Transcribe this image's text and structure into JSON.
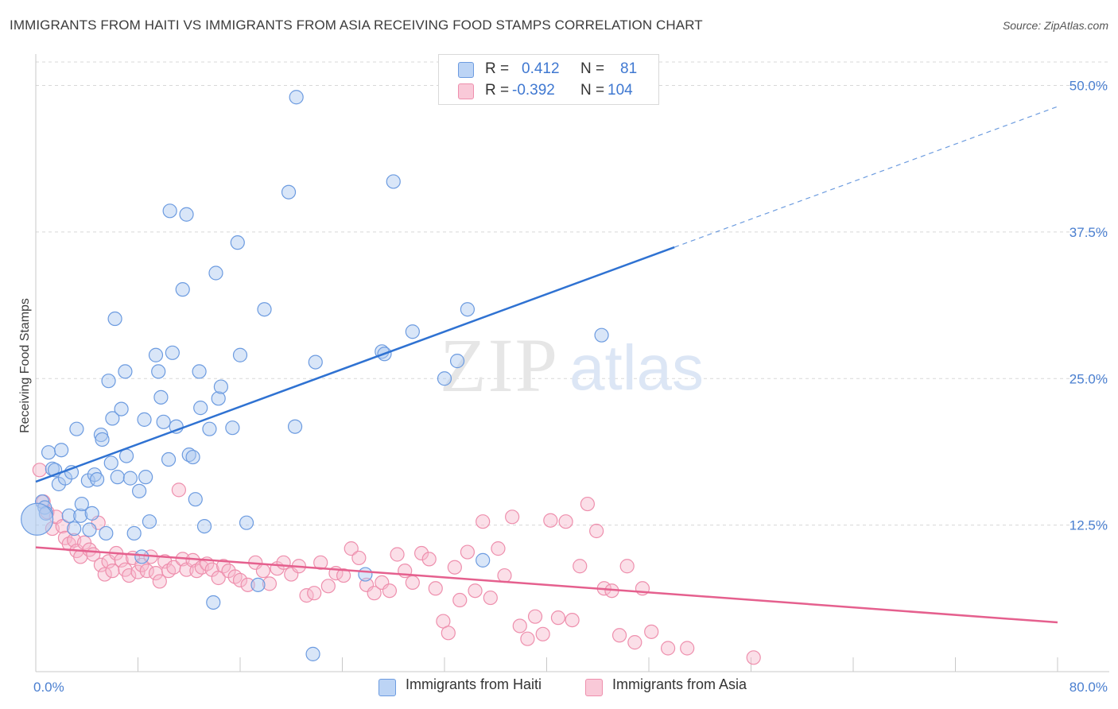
{
  "title": "IMMIGRANTS FROM HAITI VS IMMIGRANTS FROM ASIA RECEIVING FOOD STAMPS CORRELATION CHART",
  "source": "Source: ZipAtlas.com",
  "watermark_zip": "ZIP",
  "watermark_atlas": "atlas",
  "legend": {
    "haiti": {
      "r_label": "R =",
      "r_value": "0.412",
      "n_label": "N =",
      "n_value": "81"
    },
    "asia": {
      "r_label": "R =",
      "r_value": "-0.392",
      "n_label": "N =",
      "n_value": "104"
    }
  },
  "colors": {
    "haiti_fill": "#aac8f0",
    "haiti_stroke": "#6c9be0",
    "haiti_line": "#2f72d2",
    "asia_fill": "#f6b8cc",
    "asia_stroke": "#ee8fad",
    "asia_line": "#e5608e",
    "grid": "#d8d8d8",
    "axis_text": "#4a7fd0"
  },
  "chart_data": {
    "type": "scatter",
    "title": "IMMIGRANTS FROM HAITI VS IMMIGRANTS FROM ASIA RECEIVING FOOD STAMPS CORRELATION CHART",
    "xlabel": "",
    "ylabel": "Receiving Food Stamps",
    "xlim": [
      0,
      80
    ],
    "ylim": [
      0,
      52
    ],
    "x_tick_labels": [
      "0.0%",
      "80.0%"
    ],
    "y_ticks": [
      12.5,
      25.0,
      37.5,
      50.0
    ],
    "y_tick_labels": [
      "12.5%",
      "25.0%",
      "37.5%",
      "50.0%"
    ],
    "grid": true,
    "series": [
      {
        "name": "Immigrants from Haiti",
        "r": 0.412,
        "n": 81,
        "trend": {
          "x0": 0,
          "y0": 16.2,
          "x1": 50,
          "y1": 36.2,
          "dashed_to_x": 80,
          "dashed_to_y": 48.2
        },
        "points": [
          [
            0.5,
            14.5
          ],
          [
            0.7,
            14.0
          ],
          [
            0.8,
            13.5
          ],
          [
            1.0,
            18.7
          ],
          [
            1.3,
            17.3
          ],
          [
            1.5,
            17.2
          ],
          [
            1.8,
            16.0
          ],
          [
            2.0,
            18.9
          ],
          [
            2.3,
            16.5
          ],
          [
            2.6,
            13.3
          ],
          [
            2.8,
            17.0
          ],
          [
            3.0,
            12.2
          ],
          [
            3.2,
            20.7
          ],
          [
            3.5,
            13.3
          ],
          [
            3.6,
            14.3
          ],
          [
            4.1,
            16.3
          ],
          [
            4.2,
            12.1
          ],
          [
            4.4,
            13.5
          ],
          [
            4.6,
            16.8
          ],
          [
            4.8,
            16.4
          ],
          [
            5.1,
            20.2
          ],
          [
            5.2,
            19.8
          ],
          [
            5.5,
            11.8
          ],
          [
            5.7,
            24.8
          ],
          [
            5.9,
            17.8
          ],
          [
            6.0,
            21.6
          ],
          [
            6.2,
            30.1
          ],
          [
            6.4,
            16.6
          ],
          [
            6.7,
            22.4
          ],
          [
            7.0,
            25.6
          ],
          [
            7.1,
            18.4
          ],
          [
            7.4,
            16.5
          ],
          [
            7.7,
            11.8
          ],
          [
            8.1,
            15.4
          ],
          [
            8.3,
            9.8
          ],
          [
            8.5,
            21.5
          ],
          [
            8.6,
            16.6
          ],
          [
            8.9,
            12.8
          ],
          [
            9.4,
            27.0
          ],
          [
            9.6,
            25.6
          ],
          [
            9.8,
            23.4
          ],
          [
            10.0,
            21.3
          ],
          [
            10.4,
            18.1
          ],
          [
            10.5,
            39.3
          ],
          [
            10.7,
            27.2
          ],
          [
            11.0,
            20.9
          ],
          [
            11.5,
            32.6
          ],
          [
            11.8,
            39.0
          ],
          [
            12.0,
            18.5
          ],
          [
            12.3,
            18.3
          ],
          [
            12.5,
            14.7
          ],
          [
            12.8,
            25.6
          ],
          [
            12.9,
            22.5
          ],
          [
            13.2,
            12.4
          ],
          [
            13.6,
            20.7
          ],
          [
            13.9,
            5.9
          ],
          [
            14.1,
            34.0
          ],
          [
            14.3,
            23.3
          ],
          [
            14.5,
            24.3
          ],
          [
            15.4,
            20.8
          ],
          [
            15.8,
            36.6
          ],
          [
            16.0,
            27.0
          ],
          [
            16.5,
            12.7
          ],
          [
            17.4,
            7.4
          ],
          [
            17.9,
            30.9
          ],
          [
            19.8,
            40.9
          ],
          [
            20.3,
            20.9
          ],
          [
            20.4,
            49.0
          ],
          [
            21.7,
            1.5
          ],
          [
            21.9,
            26.4
          ],
          [
            25.8,
            8.3
          ],
          [
            27.1,
            27.3
          ],
          [
            27.3,
            27.1
          ],
          [
            28.0,
            41.8
          ],
          [
            29.5,
            29.0
          ],
          [
            32.0,
            25.0
          ],
          [
            33.0,
            26.5
          ],
          [
            33.8,
            30.9
          ],
          [
            35.0,
            9.5
          ],
          [
            44.3,
            28.7
          ],
          [
            0.1,
            13.0
          ]
        ]
      },
      {
        "name": "Immigrants from Asia",
        "r": -0.392,
        "n": 104,
        "trend": {
          "x0": 0,
          "y0": 10.6,
          "x1": 80,
          "y1": 4.2
        },
        "points": [
          [
            0.3,
            17.2
          ],
          [
            0.6,
            14.5
          ],
          [
            0.9,
            13.6
          ],
          [
            1.3,
            12.2
          ],
          [
            1.6,
            13.2
          ],
          [
            2.1,
            12.4
          ],
          [
            2.3,
            11.4
          ],
          [
            2.6,
            10.9
          ],
          [
            3.0,
            11.2
          ],
          [
            3.2,
            10.3
          ],
          [
            3.5,
            9.8
          ],
          [
            3.8,
            11.0
          ],
          [
            4.2,
            10.4
          ],
          [
            4.5,
            10.0
          ],
          [
            4.9,
            12.7
          ],
          [
            5.1,
            9.1
          ],
          [
            5.4,
            8.3
          ],
          [
            5.7,
            9.4
          ],
          [
            6.0,
            8.6
          ],
          [
            6.3,
            10.1
          ],
          [
            6.7,
            9.5
          ],
          [
            7.0,
            8.7
          ],
          [
            7.3,
            8.2
          ],
          [
            7.6,
            9.7
          ],
          [
            8.0,
            8.5
          ],
          [
            8.3,
            9.1
          ],
          [
            8.7,
            8.6
          ],
          [
            9.0,
            9.8
          ],
          [
            9.4,
            8.4
          ],
          [
            9.7,
            7.7
          ],
          [
            10.1,
            9.4
          ],
          [
            10.4,
            8.6
          ],
          [
            10.8,
            8.9
          ],
          [
            11.2,
            15.5
          ],
          [
            11.5,
            9.6
          ],
          [
            11.8,
            8.7
          ],
          [
            12.3,
            9.5
          ],
          [
            12.6,
            8.6
          ],
          [
            13.0,
            8.9
          ],
          [
            13.4,
            9.2
          ],
          [
            13.8,
            8.7
          ],
          [
            14.3,
            8.0
          ],
          [
            14.7,
            9.0
          ],
          [
            15.1,
            8.6
          ],
          [
            15.6,
            8.1
          ],
          [
            16.0,
            7.8
          ],
          [
            16.6,
            7.4
          ],
          [
            17.2,
            9.3
          ],
          [
            17.8,
            8.6
          ],
          [
            18.3,
            7.5
          ],
          [
            18.9,
            8.8
          ],
          [
            19.4,
            9.3
          ],
          [
            20.0,
            8.3
          ],
          [
            20.6,
            9.0
          ],
          [
            21.2,
            6.5
          ],
          [
            21.8,
            6.7
          ],
          [
            22.3,
            9.3
          ],
          [
            22.9,
            7.3
          ],
          [
            23.5,
            8.4
          ],
          [
            24.1,
            8.2
          ],
          [
            24.7,
            10.5
          ],
          [
            25.3,
            9.7
          ],
          [
            25.9,
            7.4
          ],
          [
            26.5,
            6.7
          ],
          [
            27.1,
            7.6
          ],
          [
            27.7,
            6.9
          ],
          [
            28.3,
            10.0
          ],
          [
            28.9,
            8.6
          ],
          [
            29.5,
            7.6
          ],
          [
            30.2,
            10.1
          ],
          [
            30.8,
            9.6
          ],
          [
            31.3,
            7.1
          ],
          [
            31.9,
            4.3
          ],
          [
            32.3,
            3.3
          ],
          [
            32.8,
            8.9
          ],
          [
            33.2,
            6.1
          ],
          [
            33.8,
            10.2
          ],
          [
            34.4,
            6.9
          ],
          [
            35.0,
            12.8
          ],
          [
            35.6,
            6.3
          ],
          [
            36.2,
            10.5
          ],
          [
            36.7,
            8.2
          ],
          [
            37.3,
            13.2
          ],
          [
            37.9,
            3.9
          ],
          [
            38.5,
            2.8
          ],
          [
            39.1,
            4.7
          ],
          [
            39.7,
            3.2
          ],
          [
            40.3,
            12.9
          ],
          [
            40.9,
            4.6
          ],
          [
            41.5,
            12.8
          ],
          [
            42.0,
            4.4
          ],
          [
            42.6,
            9.0
          ],
          [
            43.2,
            14.3
          ],
          [
            43.9,
            12.0
          ],
          [
            44.5,
            7.1
          ],
          [
            45.1,
            6.9
          ],
          [
            45.7,
            3.1
          ],
          [
            46.3,
            9.0
          ],
          [
            46.9,
            2.5
          ],
          [
            47.5,
            7.1
          ],
          [
            48.2,
            3.4
          ],
          [
            49.5,
            2.0
          ],
          [
            51.0,
            2.0
          ],
          [
            56.2,
            1.2
          ]
        ]
      }
    ]
  },
  "bottom_legend": {
    "haiti_label": "Immigrants from Haiti",
    "asia_label": "Immigrants from Asia"
  }
}
